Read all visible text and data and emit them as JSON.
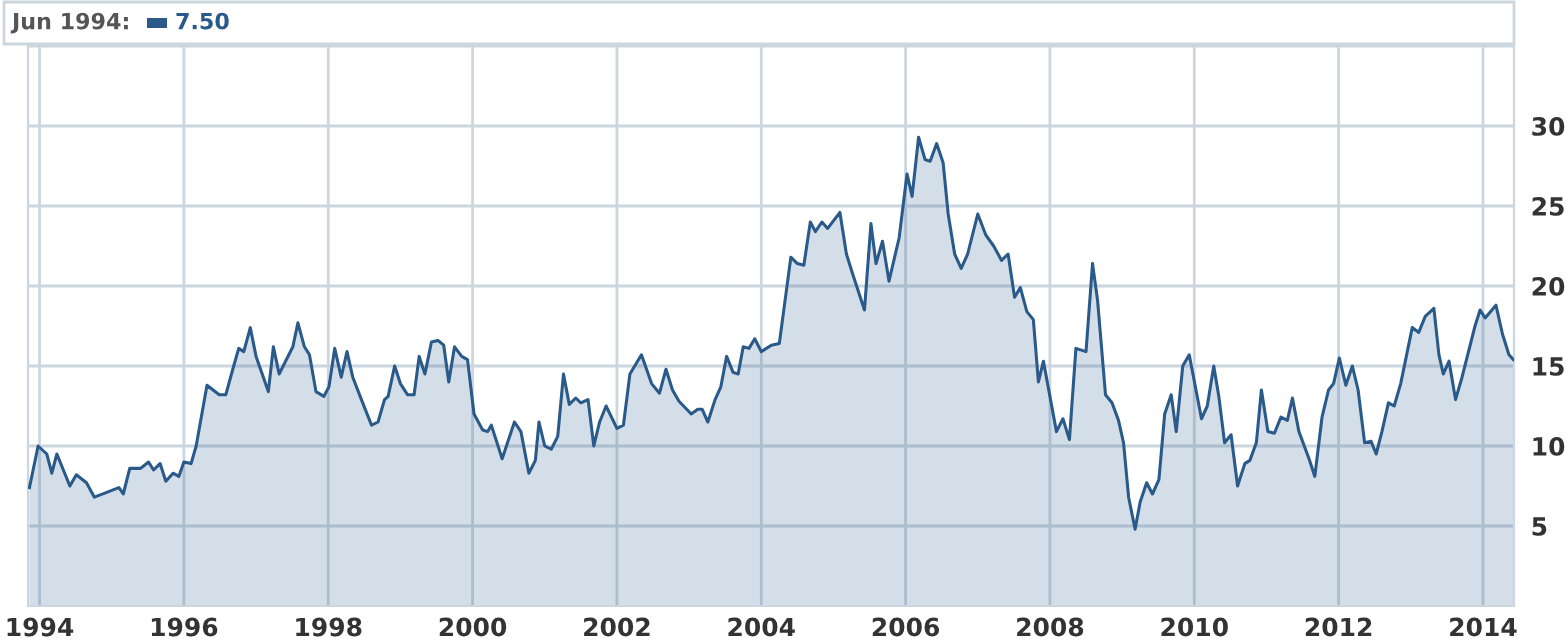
{
  "chart_data": {
    "type": "area",
    "annotations": [
      "Jun 1994:",
      "7.50"
    ],
    "series": [
      {
        "color": "#2a5a8a",
        "x": [
          1993.86,
          1993.98,
          1994.1,
          1994.17,
          1994.24,
          1994.42,
          1994.51,
          1994.65,
          1994.76,
          1995.1,
          1995.16,
          1995.25,
          1995.4,
          1995.51,
          1995.58,
          1995.67,
          1995.75,
          1995.85,
          1995.93,
          1996.0,
          1996.1,
          1996.17,
          1996.32,
          1996.49,
          1996.58,
          1996.69,
          1996.76,
          1996.83,
          1996.92,
          1997.0,
          1997.17,
          1997.24,
          1997.32,
          1997.51,
          1997.58,
          1997.67,
          1997.74,
          1997.83,
          1997.94,
          1998.01,
          1998.09,
          1998.18,
          1998.26,
          1998.34,
          1998.46,
          1998.6,
          1998.69,
          1998.78,
          1998.83,
          1998.92,
          1999.0,
          1999.1,
          1999.19,
          1999.26,
          1999.34,
          1999.43,
          1999.52,
          1999.6,
          1999.67,
          1999.75,
          1999.85,
          1999.93,
          2000.02,
          2000.14,
          2000.21,
          2000.26,
          2000.41,
          2000.58,
          2000.67,
          2000.78,
          2000.87,
          2000.92,
          2001.0,
          2001.09,
          2001.18,
          2001.26,
          2001.34,
          2001.43,
          2001.5,
          2001.6,
          2001.68,
          2001.76,
          2001.85,
          2002.0,
          2002.09,
          2002.18,
          2002.34,
          2002.48,
          2002.59,
          2002.68,
          2002.77,
          2002.86,
          2003.03,
          2003.12,
          2003.18,
          2003.26,
          2003.36,
          2003.44,
          2003.52,
          2003.61,
          2003.68,
          2003.75,
          2003.83,
          2003.91,
          2004.0,
          2004.14,
          2004.25,
          2004.41,
          2004.5,
          2004.59,
          2004.68,
          2004.75,
          2004.84,
          2004.92,
          2005.09,
          2005.18,
          2005.27,
          2005.43,
          2005.52,
          2005.59,
          2005.68,
          2005.77,
          2005.91,
          2006.02,
          2006.09,
          2006.18,
          2006.27,
          2006.34,
          2006.43,
          2006.52,
          2006.59,
          2006.68,
          2006.77,
          2006.86,
          2007.0,
          2007.11,
          2007.22,
          2007.33,
          2007.42,
          2007.51,
          2007.59,
          2007.68,
          2007.77,
          2007.84,
          2007.91,
          2008.09,
          2008.18,
          2008.27,
          2008.36,
          2008.5,
          2008.59,
          2008.66,
          2008.77,
          2008.86,
          2008.95,
          2009.02,
          2009.09,
          2009.18,
          2009.25,
          2009.34,
          2009.42,
          2009.51,
          2009.59,
          2009.68,
          2009.75,
          2009.84,
          2009.93,
          2010.1,
          2010.18,
          2010.27,
          2010.34,
          2010.42,
          2010.51,
          2010.6,
          2010.7,
          2010.77,
          2010.86,
          2010.93,
          2011.02,
          2011.11,
          2011.2,
          2011.29,
          2011.36,
          2011.45,
          2011.59,
          2011.67,
          2011.77,
          2011.86,
          2011.93,
          2012.01,
          2012.1,
          2012.19,
          2012.27,
          2012.36,
          2012.45,
          2012.52,
          2012.6,
          2012.69,
          2012.77,
          2012.86,
          2013.02,
          2013.11,
          2013.2,
          2013.32,
          2013.39,
          2013.45,
          2013.53,
          2013.62,
          2013.71,
          2013.89,
          2013.96,
          2014.03,
          2014.18,
          2014.27,
          2014.36,
          2014.42
        ],
        "values": [
          7.4,
          10.0,
          9.5,
          8.3,
          9.5,
          7.5,
          8.2,
          7.7,
          6.8,
          7.4,
          7.0,
          8.6,
          8.6,
          9.0,
          8.5,
          8.9,
          7.8,
          8.3,
          8.1,
          9.0,
          8.9,
          10.0,
          13.8,
          13.2,
          13.2,
          15.0,
          16.1,
          15.9,
          17.4,
          15.6,
          13.4,
          16.2,
          14.5,
          16.2,
          17.7,
          16.2,
          15.7,
          13.4,
          13.1,
          13.7,
          16.1,
          14.3,
          15.9,
          14.3,
          12.9,
          11.3,
          11.5,
          12.9,
          13.1,
          15.0,
          13.9,
          13.2,
          13.2,
          15.6,
          14.5,
          16.5,
          16.6,
          16.3,
          14.0,
          16.2,
          15.6,
          15.4,
          12.0,
          11.0,
          10.9,
          11.3,
          9.2,
          11.5,
          10.9,
          8.3,
          9.1,
          11.5,
          10.0,
          9.8,
          10.6,
          14.5,
          12.6,
          13.0,
          12.7,
          12.9,
          10.0,
          11.5,
          12.5,
          11.1,
          11.3,
          14.5,
          15.7,
          13.9,
          13.3,
          14.8,
          13.5,
          12.8,
          12.0,
          12.3,
          12.3,
          11.5,
          12.9,
          13.7,
          15.6,
          14.6,
          14.5,
          16.2,
          16.1,
          16.7,
          15.9,
          16.3,
          16.4,
          21.8,
          21.4,
          21.3,
          24.0,
          23.4,
          24.0,
          23.6,
          24.6,
          22.0,
          20.7,
          18.5,
          23.9,
          21.4,
          22.8,
          20.3,
          23.0,
          27.0,
          25.6,
          29.3,
          27.9,
          27.8,
          28.9,
          27.7,
          24.5,
          22.0,
          21.1,
          22.0,
          24.5,
          23.2,
          22.5,
          21.6,
          22.0,
          19.3,
          19.9,
          18.4,
          17.9,
          14.0,
          15.3,
          10.9,
          11.7,
          10.4,
          16.1,
          15.9,
          21.4,
          19.1,
          13.2,
          12.7,
          11.6,
          10.2,
          6.8,
          4.8,
          6.5,
          7.7,
          7.0,
          7.9,
          12.0,
          13.2,
          10.9,
          15.0,
          15.7,
          11.7,
          12.5,
          15.0,
          13.1,
          10.2,
          10.7,
          7.5,
          8.9,
          9.1,
          10.2,
          13.5,
          10.9,
          10.8,
          11.8,
          11.6,
          13.0,
          10.9,
          9.2,
          8.1,
          11.8,
          13.5,
          13.9,
          15.5,
          13.8,
          15.0,
          13.5,
          10.2,
          10.3,
          9.5,
          10.9,
          12.7,
          12.5,
          13.9,
          17.4,
          17.1,
          18.1,
          18.6,
          15.7,
          14.5,
          15.3,
          12.9,
          14.3,
          17.5,
          18.5,
          18.0,
          18.8,
          17.0,
          15.7,
          15.4
        ]
      }
    ],
    "xlim": [
      1993.84,
      2014.43
    ],
    "xticks": [
      1994,
      1996,
      1998,
      2000,
      2002,
      2004,
      2006,
      2008,
      2010,
      2012,
      2014
    ],
    "ylim": [
      0,
      35
    ],
    "yticks": [
      5,
      10,
      15,
      20,
      25,
      30,
      {
        "value": 35,
        "label": null
      }
    ],
    "grid": true,
    "legend": false,
    "marker": "none",
    "line_style": "solid"
  }
}
